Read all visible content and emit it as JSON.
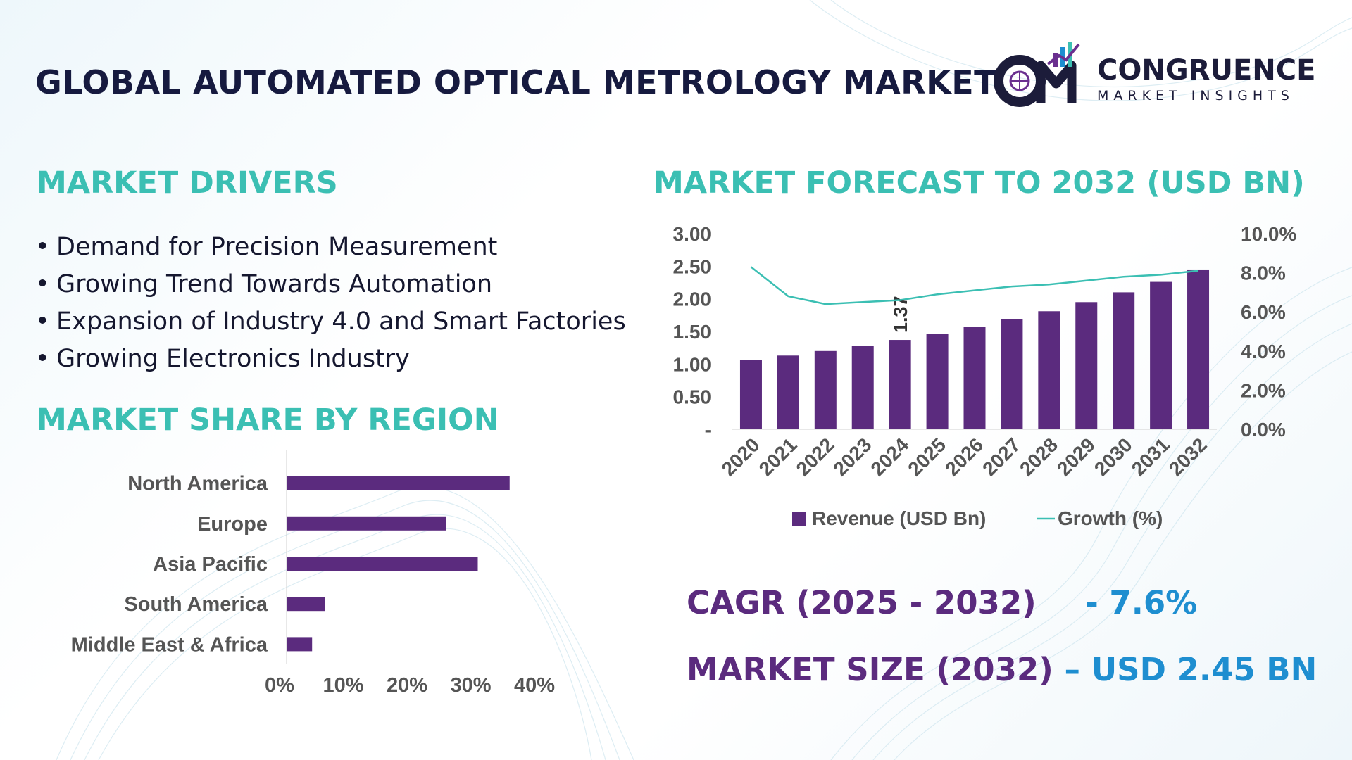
{
  "title": "GLOBAL AUTOMATED OPTICAL METROLOGY MARKET",
  "logo": {
    "initials": "CM",
    "name": "CONGRUENCE",
    "tagline": "MARKET INSIGHTS"
  },
  "colors": {
    "bar": "#5b2b7e",
    "line": "#3bbfb3",
    "heading": "#3bbfb3",
    "title": "#161a3f",
    "kpi_label": "#5b2b7e",
    "kpi_value": "#1e8ed0"
  },
  "drivers": {
    "heading": "MARKET DRIVERS",
    "bullet": "•",
    "items": [
      "Demand for Precision Measurement",
      "Growing Trend Towards Automation",
      "Expansion of Industry 4.0 and Smart Factories",
      "Growing Electronics Industry"
    ]
  },
  "region_heading": "MARKET SHARE BY REGION",
  "forecast_heading": "MARKET FORECAST TO 2032 (USD BN)",
  "kpis": {
    "cagr_label": "CAGR (2025 - 2032)",
    "cagr_value": "- 7.6%",
    "size_label": "MARKET SIZE (2032)",
    "size_value": "– USD 2.45 BN"
  },
  "chart_data": [
    {
      "type": "bar",
      "orientation": "horizontal",
      "categories": [
        "North America",
        "Europe",
        "Asia Pacific",
        "South America",
        "Middle East & Africa"
      ],
      "values": [
        35,
        25,
        30,
        6,
        4
      ],
      "xlim": [
        0,
        40
      ],
      "xticks": [
        "0%",
        "10%",
        "20%",
        "30%",
        "40%"
      ],
      "grid": false
    },
    {
      "type": "bar",
      "categories": [
        "2020",
        "2021",
        "2022",
        "2023",
        "2024",
        "2025",
        "2026",
        "2027",
        "2028",
        "2029",
        "2030",
        "2031",
        "2032"
      ],
      "series": [
        {
          "name": "Revenue (USD Bn)",
          "type": "bar",
          "axis": "left",
          "values": [
            1.06,
            1.13,
            1.2,
            1.28,
            1.37,
            1.46,
            1.57,
            1.69,
            1.81,
            1.95,
            2.1,
            2.26,
            2.45
          ]
        },
        {
          "name": "Growth (%)",
          "type": "line",
          "axis": "right",
          "values": [
            8.3,
            6.8,
            6.4,
            6.5,
            6.6,
            6.9,
            7.1,
            7.3,
            7.4,
            7.6,
            7.8,
            7.9,
            8.1
          ]
        }
      ],
      "ylim": [
        0,
        3
      ],
      "yticks": [
        "-",
        "0.50",
        "1.00",
        "1.50",
        "2.00",
        "2.50",
        "3.00"
      ],
      "y2lim": [
        0,
        10
      ],
      "y2ticks": [
        "0.0%",
        "2.0%",
        "4.0%",
        "6.0%",
        "8.0%",
        "10.0%"
      ],
      "annotations": [
        {
          "category": "2024",
          "text": "1.37"
        }
      ],
      "legend": "bottom",
      "grid": false
    }
  ]
}
